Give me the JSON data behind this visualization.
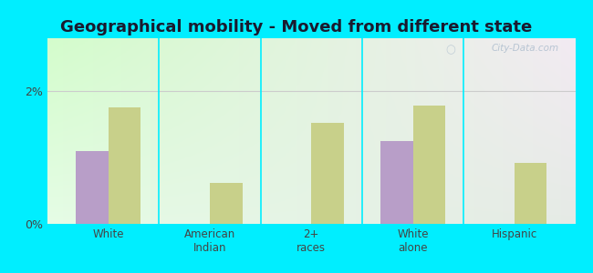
{
  "title": "Geographical mobility - Moved from different state",
  "categories": [
    "White",
    "American\nIndian",
    "2+\nraces",
    "White\nalone",
    "Hispanic"
  ],
  "munnsville_values": [
    1.1,
    0.0,
    0.0,
    1.25,
    0.0
  ],
  "newyork_values": [
    1.75,
    0.62,
    1.52,
    1.78,
    0.92
  ],
  "bar_color_munnsville": "#b89ec8",
  "bar_color_newyork": "#c8d08a",
  "ylim": [
    0,
    2.8
  ],
  "yticks": [
    0,
    2
  ],
  "ytick_labels": [
    "0%",
    "2%"
  ],
  "outer_bg": "#00eeff",
  "bar_width": 0.32,
  "title_fontsize": 13,
  "label_fontsize": 8.5,
  "tick_fontsize": 9
}
